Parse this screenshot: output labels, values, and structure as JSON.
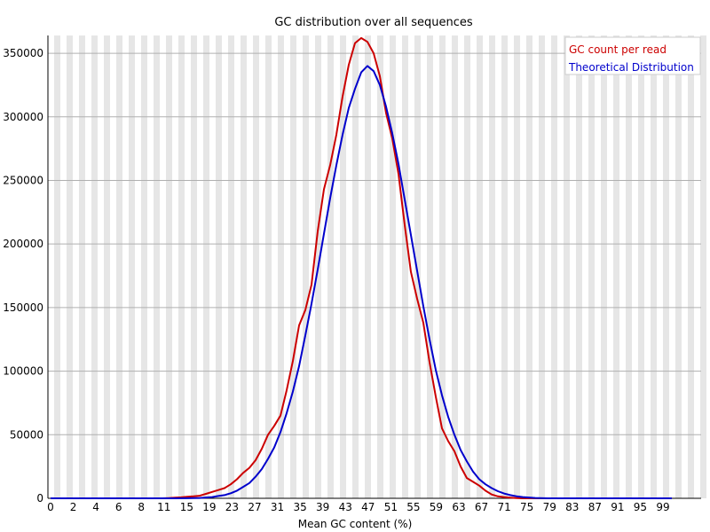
{
  "chart_data": {
    "type": "line",
    "title": "GC distribution over all sequences",
    "xlabel": "Mean GC content (%)",
    "ylabel": "",
    "xlim": [
      0,
      100
    ],
    "ylim": [
      0,
      364000
    ],
    "x_tick_labels": [
      "0",
      "2",
      "4",
      "6",
      "8",
      "11",
      "15",
      "19",
      "23",
      "27",
      "31",
      "35",
      "39",
      "43",
      "47",
      "51",
      "55",
      "59",
      "63",
      "67",
      "71",
      "75",
      "79",
      "83",
      "87",
      "91",
      "95",
      "99"
    ],
    "y_ticks": [
      0,
      50000,
      100000,
      150000,
      200000,
      250000,
      300000,
      350000
    ],
    "grid": "horizontal lines with alternating vertical bands",
    "legend_position": "top-right",
    "series": [
      {
        "name": "GC count per read",
        "color": "#cc0000",
        "points": [
          [
            0,
            0
          ],
          [
            5,
            0
          ],
          [
            10,
            0
          ],
          [
            15,
            0
          ],
          [
            18,
            0
          ],
          [
            19,
            200
          ],
          [
            20,
            500
          ],
          [
            21,
            800
          ],
          [
            22,
            1200
          ],
          [
            23,
            1500
          ],
          [
            24,
            2000
          ],
          [
            25,
            3500
          ],
          [
            26,
            5000
          ],
          [
            27,
            6500
          ],
          [
            28,
            8000
          ],
          [
            29,
            11000
          ],
          [
            30,
            15000
          ],
          [
            31,
            20000
          ],
          [
            32,
            24000
          ],
          [
            33,
            30000
          ],
          [
            34,
            39000
          ],
          [
            35,
            50000
          ],
          [
            36,
            57000
          ],
          [
            37,
            65000
          ],
          [
            38,
            85000
          ],
          [
            39,
            108000
          ],
          [
            40,
            136000
          ],
          [
            41,
            148000
          ],
          [
            42,
            168000
          ],
          [
            43,
            210000
          ],
          [
            44,
            243000
          ],
          [
            45,
            262000
          ],
          [
            46,
            286000
          ],
          [
            47,
            316000
          ],
          [
            48,
            341000
          ],
          [
            49,
            358000
          ],
          [
            50,
            362000
          ],
          [
            51,
            359000
          ],
          [
            52,
            350000
          ],
          [
            53,
            332000
          ],
          [
            54,
            303000
          ],
          [
            55,
            283000
          ],
          [
            56,
            255000
          ],
          [
            57,
            215000
          ],
          [
            58,
            178000
          ],
          [
            59,
            157000
          ],
          [
            60,
            138000
          ],
          [
            61,
            107000
          ],
          [
            62,
            80000
          ],
          [
            63,
            55000
          ],
          [
            64,
            45000
          ],
          [
            65,
            37000
          ],
          [
            66,
            25000
          ],
          [
            67,
            16000
          ],
          [
            68,
            13000
          ],
          [
            69,
            10000
          ],
          [
            70,
            6000
          ],
          [
            71,
            3000
          ],
          [
            72,
            1500
          ],
          [
            73,
            1000
          ],
          [
            74,
            500
          ],
          [
            75,
            200
          ],
          [
            76,
            0
          ],
          [
            80,
            0
          ],
          [
            85,
            0
          ],
          [
            90,
            0
          ],
          [
            95,
            0
          ],
          [
            100,
            0
          ]
        ]
      },
      {
        "name": "Theoretical Distribution",
        "color": "#0000cc",
        "points": [
          [
            0,
            0
          ],
          [
            5,
            0
          ],
          [
            10,
            0
          ],
          [
            15,
            0
          ],
          [
            20,
            0
          ],
          [
            22,
            100
          ],
          [
            24,
            300
          ],
          [
            25,
            600
          ],
          [
            26,
            1000
          ],
          [
            27,
            1800
          ],
          [
            28,
            2500
          ],
          [
            29,
            4000
          ],
          [
            30,
            6000
          ],
          [
            31,
            9000
          ],
          [
            32,
            12000
          ],
          [
            33,
            17000
          ],
          [
            34,
            23000
          ],
          [
            35,
            31000
          ],
          [
            36,
            40000
          ],
          [
            37,
            52000
          ],
          [
            38,
            67000
          ],
          [
            39,
            84000
          ],
          [
            40,
            104000
          ],
          [
            41,
            128000
          ],
          [
            42,
            153000
          ],
          [
            43,
            180000
          ],
          [
            44,
            208000
          ],
          [
            45,
            236000
          ],
          [
            46,
            262000
          ],
          [
            47,
            286000
          ],
          [
            48,
            307000
          ],
          [
            49,
            322000
          ],
          [
            50,
            335000
          ],
          [
            51,
            340000
          ],
          [
            52,
            336000
          ],
          [
            53,
            325000
          ],
          [
            54,
            308000
          ],
          [
            55,
            287000
          ],
          [
            56,
            263000
          ],
          [
            57,
            235000
          ],
          [
            58,
            207000
          ],
          [
            59,
            179000
          ],
          [
            60,
            151000
          ],
          [
            61,
            125000
          ],
          [
            62,
            101000
          ],
          [
            63,
            81000
          ],
          [
            64,
            64000
          ],
          [
            65,
            50000
          ],
          [
            66,
            38000
          ],
          [
            67,
            29000
          ],
          [
            68,
            21000
          ],
          [
            69,
            15000
          ],
          [
            70,
            11000
          ],
          [
            71,
            8000
          ],
          [
            72,
            5600
          ],
          [
            73,
            3800
          ],
          [
            74,
            2500
          ],
          [
            75,
            1600
          ],
          [
            76,
            1000
          ],
          [
            77,
            600
          ],
          [
            78,
            300
          ],
          [
            80,
            0
          ],
          [
            85,
            0
          ],
          [
            90,
            0
          ],
          [
            95,
            0
          ],
          [
            100,
            0
          ]
        ]
      }
    ]
  }
}
